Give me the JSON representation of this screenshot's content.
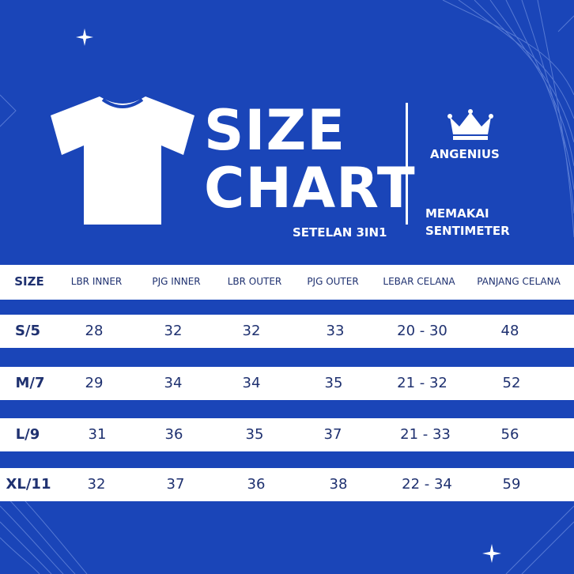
{
  "title": {
    "line1": "SIZE",
    "line2": "CHART"
  },
  "subtitle": "SETELAN 3IN1",
  "brand": "ANGENIUS",
  "note": {
    "line1": "MEMAKAI",
    "line2": "SENTIMETER"
  },
  "colors": {
    "background": "#1a45b8",
    "text_dark": "#1f3170",
    "white": "#ffffff"
  },
  "icons": [
    "tshirt-icon",
    "crown-icon",
    "sparkle-icon"
  ],
  "table": {
    "headers": [
      "SIZE",
      "LBR INNER",
      "PJG INNER",
      "LBR OUTER",
      "PJG OUTER",
      "LEBAR CELANA",
      "PANJANG CELANA"
    ],
    "rows": [
      [
        "S/5",
        "28",
        "32",
        "32",
        "33",
        "20 - 30",
        "48"
      ],
      [
        "M/7",
        "29",
        "34",
        "34",
        "35",
        "21 - 32",
        "52"
      ],
      [
        "L/9",
        "31",
        "36",
        "35",
        "37",
        "21 - 33",
        "56"
      ],
      [
        "XL/11",
        "32",
        "37",
        "36",
        "38",
        "22 - 34",
        "59"
      ]
    ]
  }
}
